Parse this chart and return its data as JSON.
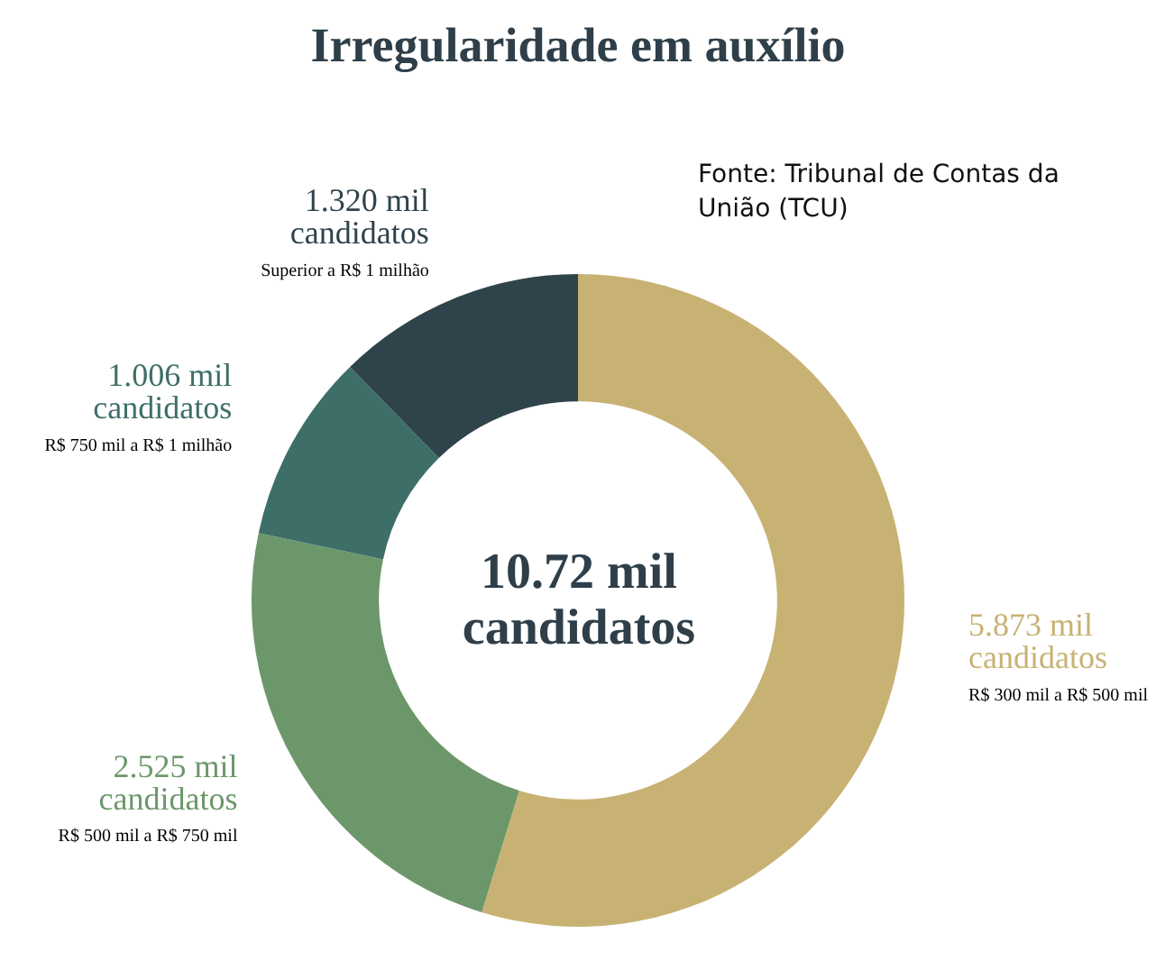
{
  "chart_data": {
    "type": "donut",
    "title": "Irregularidade em auxílio",
    "categories": [
      "R$ 300 mil a R$ 500 mil",
      "R$ 500 mil a R$ 750 mil",
      "R$ 750 mil a R$ 1 milhão",
      "Superior a R$ 1 milhão"
    ],
    "values": [
      5.873,
      2.525,
      1.006,
      1.32
    ],
    "value_labels": [
      "5.873 mil candidatos",
      "2.525 mil candidatos",
      "1.006 mil candidatos",
      "1.320 mil candidatos"
    ],
    "colors": [
      "#c8b273",
      "#6c976a",
      "#3e6e68",
      "#2f434b"
    ],
    "annotations": [
      "10.72 mil candidatos",
      "Fonte: Tribunal de Contas da União (TCU)"
    ],
    "legend": false
  }
}
